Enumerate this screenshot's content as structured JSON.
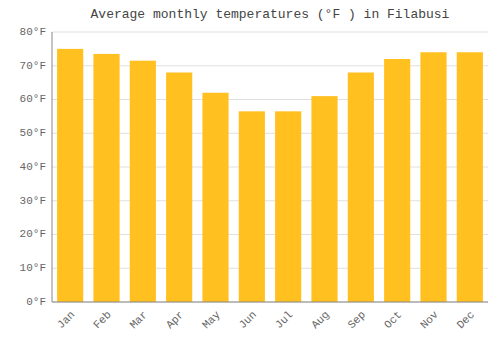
{
  "chart_data": {
    "type": "bar",
    "title": "Average monthly temperatures (°F ) in Filabusi",
    "categories": [
      "Jan",
      "Feb",
      "Mar",
      "Apr",
      "May",
      "Jun",
      "Jul",
      "Aug",
      "Sep",
      "Oct",
      "Nov",
      "Dec"
    ],
    "values": [
      75,
      73.5,
      71.5,
      68,
      62,
      56.5,
      56.5,
      61,
      68,
      72,
      74,
      74
    ],
    "color": "#FFC020",
    "ylim": [
      0,
      80
    ],
    "yticks": [
      {
        "value": 0,
        "label": "0°F"
      },
      {
        "value": 10,
        "label": "10°F"
      },
      {
        "value": 20,
        "label": "20°F"
      },
      {
        "value": 30,
        "label": "30°F"
      },
      {
        "value": 40,
        "label": "40°F"
      },
      {
        "value": 50,
        "label": "50°F"
      },
      {
        "value": 60,
        "label": "60°F"
      },
      {
        "value": 70,
        "label": "70°F"
      },
      {
        "value": 80,
        "label": "80°F"
      }
    ],
    "grid": true
  }
}
